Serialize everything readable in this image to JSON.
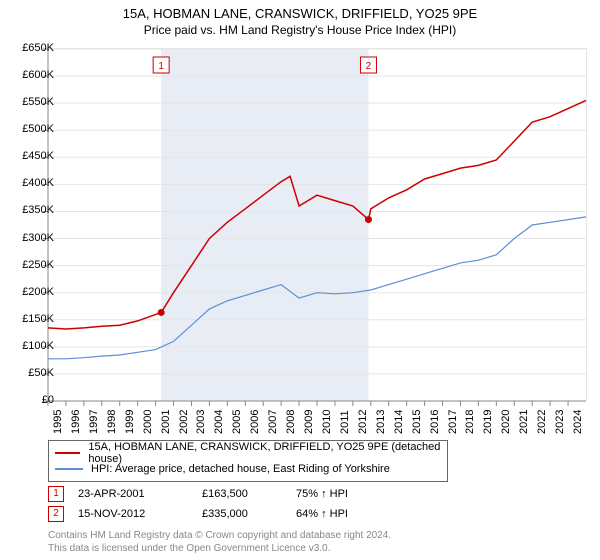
{
  "title": {
    "main": "15A, HOBMAN LANE, CRANSWICK, DRIFFIELD, YO25 9PE",
    "sub": "Price paid vs. HM Land Registry's House Price Index (HPI)",
    "main_fontsize": 13,
    "sub_fontsize": 12
  },
  "chart": {
    "type": "line",
    "background_color": "#ffffff",
    "grid_color": "#e5e5e5",
    "plot_bg_band_color": "#e8edf5",
    "axis_color": "#888888",
    "xlim": [
      1995,
      2025
    ],
    "ylim": [
      0,
      650000
    ],
    "y_ticks": [
      0,
      50000,
      100000,
      150000,
      200000,
      250000,
      300000,
      350000,
      400000,
      450000,
      500000,
      550000,
      600000,
      650000
    ],
    "y_tick_labels": [
      "£0",
      "£50K",
      "£100K",
      "£150K",
      "£200K",
      "£250K",
      "£300K",
      "£350K",
      "£400K",
      "£450K",
      "£500K",
      "£550K",
      "£600K",
      "£650K"
    ],
    "x_ticks": [
      1995,
      1996,
      1997,
      1998,
      1999,
      2000,
      2001,
      2002,
      2003,
      2004,
      2005,
      2006,
      2007,
      2008,
      2009,
      2010,
      2011,
      2012,
      2013,
      2014,
      2015,
      2016,
      2017,
      2018,
      2019,
      2020,
      2021,
      2022,
      2023,
      2024
    ],
    "x_tick_labels": [
      "1995",
      "1996",
      "1997",
      "1998",
      "1999",
      "2000",
      "2001",
      "2002",
      "2003",
      "2004",
      "2005",
      "2006",
      "2007",
      "2008",
      "2009",
      "2010",
      "2011",
      "2012",
      "2013",
      "2014",
      "2015",
      "2016",
      "2017",
      "2018",
      "2019",
      "2020",
      "2021",
      "2022",
      "2023",
      "2024"
    ],
    "sale_band": {
      "start": 2001.31,
      "end": 2012.87
    },
    "series": [
      {
        "id": "property",
        "label": "15A, HOBMAN LANE, CRANSWICK, DRIFFIELD, YO25 9PE (detached house)",
        "color": "#cc0000",
        "line_width": 1.5,
        "points": [
          [
            1995,
            135000
          ],
          [
            1996,
            133000
          ],
          [
            1997,
            135000
          ],
          [
            1998,
            138000
          ],
          [
            1999,
            140000
          ],
          [
            2000,
            148000
          ],
          [
            2001,
            160000
          ],
          [
            2001.31,
            163500
          ],
          [
            2002,
            200000
          ],
          [
            2003,
            250000
          ],
          [
            2004,
            300000
          ],
          [
            2005,
            330000
          ],
          [
            2006,
            355000
          ],
          [
            2007,
            380000
          ],
          [
            2008,
            405000
          ],
          [
            2008.5,
            415000
          ],
          [
            2009,
            360000
          ],
          [
            2010,
            380000
          ],
          [
            2011,
            370000
          ],
          [
            2012,
            360000
          ],
          [
            2012.87,
            335000
          ],
          [
            2013,
            355000
          ],
          [
            2014,
            375000
          ],
          [
            2015,
            390000
          ],
          [
            2016,
            410000
          ],
          [
            2017,
            420000
          ],
          [
            2018,
            430000
          ],
          [
            2019,
            435000
          ],
          [
            2020,
            445000
          ],
          [
            2021,
            480000
          ],
          [
            2022,
            515000
          ],
          [
            2023,
            525000
          ],
          [
            2024,
            540000
          ],
          [
            2025,
            555000
          ]
        ]
      },
      {
        "id": "hpi",
        "label": "HPI: Average price, detached house, East Riding of Yorkshire",
        "color": "#5b8fd6",
        "line_width": 1.2,
        "points": [
          [
            1995,
            78000
          ],
          [
            1996,
            78000
          ],
          [
            1997,
            80000
          ],
          [
            1998,
            83000
          ],
          [
            1999,
            85000
          ],
          [
            2000,
            90000
          ],
          [
            2001,
            95000
          ],
          [
            2002,
            110000
          ],
          [
            2003,
            140000
          ],
          [
            2004,
            170000
          ],
          [
            2005,
            185000
          ],
          [
            2006,
            195000
          ],
          [
            2007,
            205000
          ],
          [
            2008,
            215000
          ],
          [
            2009,
            190000
          ],
          [
            2010,
            200000
          ],
          [
            2011,
            198000
          ],
          [
            2012,
            200000
          ],
          [
            2013,
            205000
          ],
          [
            2014,
            215000
          ],
          [
            2015,
            225000
          ],
          [
            2016,
            235000
          ],
          [
            2017,
            245000
          ],
          [
            2018,
            255000
          ],
          [
            2019,
            260000
          ],
          [
            2020,
            270000
          ],
          [
            2021,
            300000
          ],
          [
            2022,
            325000
          ],
          [
            2023,
            330000
          ],
          [
            2024,
            335000
          ],
          [
            2025,
            340000
          ]
        ]
      }
    ],
    "sale_markers": [
      {
        "n": "1",
        "x": 2001.31,
        "y": 163500
      },
      {
        "n": "2",
        "x": 2012.87,
        "y": 335000
      }
    ],
    "tick_fontsize": 11
  },
  "legend": {
    "border_color": "#666666",
    "fontsize": 11,
    "items": [
      {
        "color": "#cc0000",
        "label": "15A, HOBMAN LANE, CRANSWICK, DRIFFIELD, YO25 9PE (detached house)"
      },
      {
        "color": "#5b8fd6",
        "label": "HPI: Average price, detached house, East Riding of Yorkshire"
      }
    ]
  },
  "sales": [
    {
      "n": "1",
      "date": "23-APR-2001",
      "price": "£163,500",
      "pct": "75% ↑ HPI"
    },
    {
      "n": "2",
      "date": "15-NOV-2012",
      "price": "£335,000",
      "pct": "64% ↑ HPI"
    }
  ],
  "footer": {
    "line1": "Contains HM Land Registry data © Crown copyright and database right 2024.",
    "line2": "This data is licensed under the Open Government Licence v3.0.",
    "color": "#888888",
    "fontsize": 10
  }
}
